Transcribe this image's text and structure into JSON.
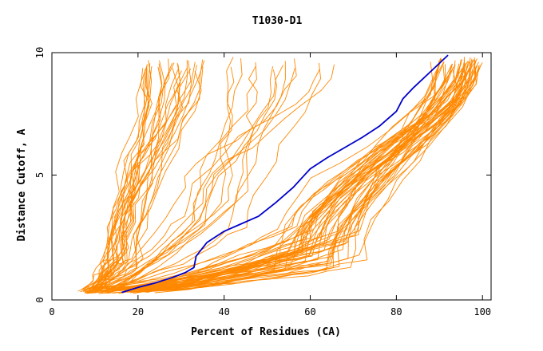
{
  "chart_data": {
    "type": "line",
    "title": "T1030-D1",
    "xlabel": "Percent of Residues (CA)",
    "ylabel": "Distance Cutoff, A",
    "xlim": [
      0,
      102
    ],
    "ylim": [
      0,
      9.9
    ],
    "x_ticks": [
      0,
      20,
      40,
      60,
      80,
      100
    ],
    "x_tick_labels": [
      "0",
      "20",
      "40",
      "60",
      "80",
      "100"
    ],
    "y_ticks": [
      0,
      5,
      10
    ],
    "y_tick_labels": [
      "0",
      "5",
      "10"
    ],
    "grid": false,
    "legend": false,
    "colors": {
      "highlight": "#0000cc",
      "others": "#ff8800",
      "frame": "#000000"
    },
    "highlight_series": {
      "x": [
        16.2,
        20,
        24,
        28,
        31,
        33,
        33.5,
        36,
        40,
        44,
        48,
        52,
        56,
        60,
        64,
        68,
        72,
        76,
        80,
        81.5,
        84,
        88,
        92
      ],
      "y": [
        0.3,
        0.5,
        0.68,
        0.9,
        1.1,
        1.3,
        1.75,
        2.3,
        2.75,
        3.05,
        3.35,
        3.9,
        4.5,
        5.25,
        5.7,
        6.1,
        6.5,
        6.95,
        7.55,
        8.05,
        8.5,
        9.15,
        9.8
      ]
    },
    "series_groups": {
      "group_a": {
        "count": 30,
        "x_start": [
          6,
          11
        ],
        "x_mid": [
          12,
          21
        ],
        "x_end": [
          21,
          37
        ],
        "y_mid": [
          1.2,
          2.4
        ],
        "y_end": 9.7
      },
      "group_b": {
        "count": 14,
        "x_start": [
          8,
          14
        ],
        "x_mid": [
          30,
          46
        ],
        "x_end": [
          37,
          71
        ],
        "y_mid": [
          2.6,
          4.5
        ],
        "y_end": 9.7
      },
      "group_c": {
        "count": 52,
        "x_start": [
          7,
          24
        ],
        "x_mid": [
          52,
          73
        ],
        "x_end": [
          89,
          100
        ],
        "y_mid": [
          1.2,
          2.9
        ],
        "y_end": 9.7
      }
    }
  }
}
